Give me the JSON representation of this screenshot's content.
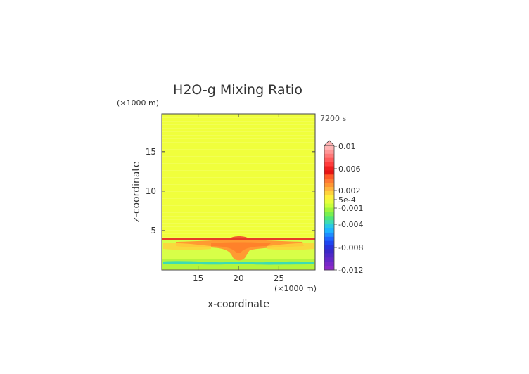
{
  "chart_data": {
    "type": "heatmap",
    "title": "H2O-g Mixing Ratio",
    "xlabel": "x-coordinate",
    "ylabel": "z-coordinate",
    "x_unit": "(×1000 m)",
    "y_unit": "(×1000 m)",
    "time_label": "7200 s",
    "xlim": [
      10.5,
      29.5
    ],
    "ylim": [
      0,
      19.8
    ],
    "x_ticks": [
      15,
      20,
      25
    ],
    "y_ticks": [
      5,
      10,
      15
    ],
    "colorbar": {
      "labels": [
        {
          "text": "0.01",
          "value": 0.01
        },
        {
          "text": "0.006",
          "value": 0.006
        },
        {
          "text": "0.002",
          "value": 0.002
        },
        {
          "text": "5e-4",
          "value": 0.0005
        },
        {
          "text": "-0.001",
          "value": -0.001
        },
        {
          "text": "-0.004",
          "value": -0.004
        },
        {
          "text": "-0.008",
          "value": -0.008
        },
        {
          "text": "-0.012",
          "value": -0.012
        }
      ],
      "extend_top": true
    },
    "regions": [
      {
        "name": "background",
        "value": 0.0005,
        "color": "#f0ff3c"
      },
      {
        "name": "surface-layer",
        "value": -0.0005,
        "color": "#b4f53c"
      },
      {
        "name": "lower-band",
        "value": -0.002,
        "color": "#3cdcb4"
      },
      {
        "name": "outflow-anvil",
        "value": 0.002,
        "color": "#ff9632"
      },
      {
        "name": "top-line",
        "value": 0.006,
        "color": "#e63c28"
      }
    ]
  }
}
